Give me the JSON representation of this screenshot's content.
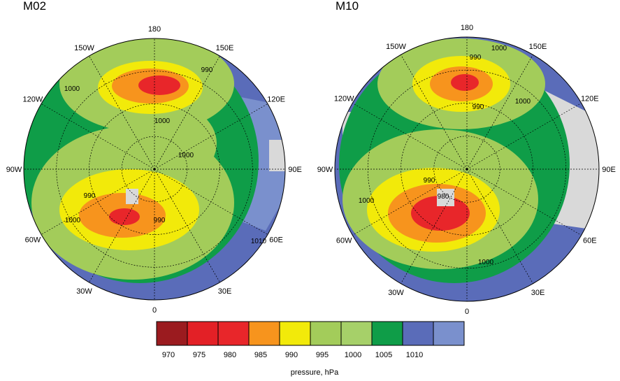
{
  "panels": [
    {
      "title": "M02",
      "lon_labels": [
        "180",
        "150E",
        "120E",
        "90E",
        "60E",
        "30E",
        "0",
        "30W",
        "60W",
        "90W",
        "120W",
        "150W"
      ],
      "contour_labels": [
        "990",
        "1000",
        "1000",
        "1000",
        "990",
        "1000",
        "990",
        "1010"
      ]
    },
    {
      "title": "M10",
      "lon_labels": [
        "180",
        "150E",
        "120E",
        "90E",
        "60E",
        "30E",
        "0",
        "30W",
        "60W",
        "90W",
        "120W",
        "150W"
      ],
      "contour_labels": [
        "990",
        "1000",
        "1000",
        "990",
        "990",
        "980",
        "1000",
        "1000"
      ]
    }
  ],
  "colorbar": {
    "colors": [
      "#9b1b1f",
      "#e32026",
      "#e8262a",
      "#f7941d",
      "#f2ea0a",
      "#a3cc5a",
      "#a6d069",
      "#0f9d48",
      "#5a6cb9",
      "#7a90cd"
    ],
    "ticks": [
      "970",
      "975",
      "980",
      "985",
      "990",
      "995",
      "1000",
      "1005",
      "1010"
    ],
    "label": "pressure, hPa"
  }
}
